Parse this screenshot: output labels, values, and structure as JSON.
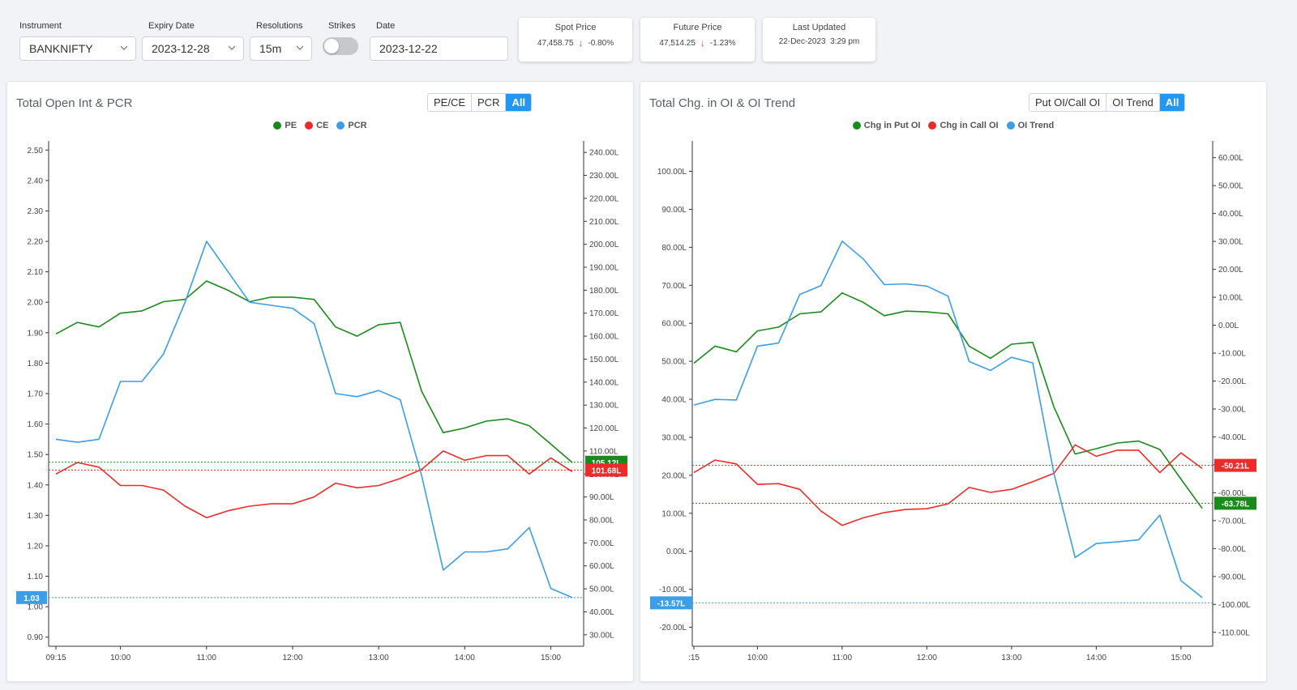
{
  "colors": {
    "accent": "#2196f3",
    "pe": "#1a8a1a",
    "ce": "#ee2b2b",
    "pcr": "#3b9ee6",
    "down": "#e53935"
  },
  "filters": {
    "instrument": {
      "label": "Instrument",
      "value": "BANKNIFTY"
    },
    "expiry": {
      "label": "Expiry Date",
      "value": "2023-12-28"
    },
    "resolution": {
      "label": "Resolutions",
      "value": "15m"
    },
    "strikes": {
      "label": "Strikes"
    },
    "date": {
      "label": "Date",
      "value": "2023-12-22"
    }
  },
  "stats": {
    "spot": {
      "title": "Spot Price",
      "value": "47,458.75",
      "change": "-0.80%",
      "arrow": "down-arrow-icon"
    },
    "future": {
      "title": "Future Price",
      "value": "47,514.25",
      "change": "-1.23%",
      "arrow": "down-arrow-icon"
    },
    "updated": {
      "title": "Last Updated",
      "value": "22-Dec-2023  3:29 pm"
    }
  },
  "left_panel": {
    "title": "Total Open Int & PCR",
    "buttons": [
      "PE/CE",
      "PCR",
      "All"
    ],
    "active_button": "All",
    "legend": [
      "PE",
      "CE",
      "PCR"
    ]
  },
  "right_panel": {
    "title": "Total Chg. in OI & OI Trend",
    "buttons": [
      "Put OI/Call OI",
      "OI Trend",
      "All"
    ],
    "active_button": "All",
    "legend": [
      "Chg in Put OI",
      "Chg in Call OI",
      "OI Trend"
    ]
  },
  "chart_data": [
    {
      "type": "line",
      "title": "Total Open Int & PCR",
      "x": [
        "09:15",
        "09:30",
        "09:45",
        "10:00",
        "10:15",
        "10:30",
        "10:45",
        "11:00",
        "11:15",
        "11:30",
        "11:45",
        "12:00",
        "12:15",
        "12:30",
        "12:45",
        "13:00",
        "13:15",
        "13:30",
        "13:45",
        "14:00",
        "14:15",
        "14:30",
        "14:45",
        "15:00",
        "15:15"
      ],
      "x_ticks": [
        "09:15",
        "10:00",
        "11:00",
        "12:00",
        "13:00",
        "14:00",
        "15:00"
      ],
      "left_axis": {
        "ticks": [
          "2.50",
          "2.40",
          "2.30",
          "2.20",
          "2.10",
          "2.00",
          "1.90",
          "1.80",
          "1.70",
          "1.60",
          "1.50",
          "1.40",
          "1.30",
          "1.20",
          "1.10",
          "1.00",
          "0.90"
        ],
        "range": [
          0.87,
          2.53
        ]
      },
      "right_axis": {
        "ticks": [
          "240.00L",
          "230.00L",
          "220.00L",
          "210.00L",
          "200.00L",
          "190.00L",
          "180.00L",
          "170.00L",
          "160.00L",
          "150.00L",
          "140.00L",
          "130.00L",
          "120.00L",
          "110.00L",
          "100.00L",
          "90.00L",
          "80.00L",
          "70.00L",
          "60.00L",
          "50.00L",
          "40.00L",
          "30.00L"
        ],
        "range": [
          25,
          245
        ]
      },
      "series": [
        {
          "name": "PE",
          "axis": "right",
          "values": [
            161,
            166,
            164,
            170,
            171,
            175,
            176,
            184,
            180,
            175,
            177,
            177,
            176,
            164,
            160,
            165,
            166,
            136,
            118,
            120,
            123,
            124,
            121,
            113,
            105
          ]
        },
        {
          "name": "CE",
          "axis": "right",
          "values": [
            100,
            105,
            103,
            95,
            95,
            93,
            86,
            81,
            84,
            86,
            87,
            87,
            90,
            96,
            94,
            95,
            98,
            102,
            110,
            106,
            108,
            108,
            100,
            107,
            101
          ]
        },
        {
          "name": "PCR",
          "axis": "left",
          "values": [
            1.55,
            1.54,
            1.55,
            1.74,
            1.74,
            1.83,
            2.0,
            2.2,
            2.1,
            2.0,
            1.99,
            1.98,
            1.93,
            1.7,
            1.69,
            1.71,
            1.68,
            1.43,
            1.12,
            1.18,
            1.18,
            1.19,
            1.26,
            1.06,
            1.03
          ]
        }
      ],
      "price_tags": [
        {
          "series": "PE",
          "text": "105.12L",
          "value": 105.12,
          "axis": "right"
        },
        {
          "series": "CE",
          "text": "101.68L",
          "value": 101.68,
          "axis": "right"
        },
        {
          "series": "PCR",
          "text": "1.03",
          "value": 1.03,
          "axis": "left"
        }
      ]
    },
    {
      "type": "line",
      "title": "Total Chg. in OI & OI Trend",
      "x": [
        "09:15",
        "09:30",
        "09:45",
        "10:00",
        "10:15",
        "10:30",
        "10:45",
        "11:00",
        "11:15",
        "11:30",
        "11:45",
        "12:00",
        "12:15",
        "12:30",
        "12:45",
        "13:00",
        "13:15",
        "13:30",
        "13:45",
        "14:00",
        "14:15",
        "14:30",
        "14:45",
        "15:00",
        "15:15"
      ],
      "x_ticks": [
        ":15",
        "10:00",
        "11:00",
        "12:00",
        "13:00",
        "14:00",
        "15:00"
      ],
      "left_axis": {
        "ticks": [
          "100.00L",
          "90.00L",
          "80.00L",
          "70.00L",
          "60.00L",
          "50.00L",
          "40.00L",
          "30.00L",
          "20.00L",
          "10.00L",
          "0.00L",
          "-10.00L",
          "-20.00L"
        ],
        "range": [
          -25,
          108
        ]
      },
      "right_axis": {
        "ticks": [
          "60.00L",
          "50.00L",
          "40.00L",
          "30.00L",
          "20.00L",
          "10.00L",
          "0.00L",
          "-10.00L",
          "-20.00L",
          "-30.00L",
          "-40.00L",
          "-50.00L",
          "-60.00L",
          "-70.00L",
          "-80.00L",
          "-90.00L",
          "-100.00L",
          "-110.00L"
        ],
        "range": [
          -115,
          66
        ]
      },
      "series": [
        {
          "name": "Chg in Put OI",
          "axis": "left",
          "values": [
            49.5,
            54,
            52.5,
            58,
            59,
            62.5,
            63,
            68,
            65.5,
            62,
            63.2,
            63,
            62.5,
            54,
            50.8,
            54.5,
            55,
            38,
            25.6,
            27,
            28.5,
            29,
            26.8,
            19,
            11.3
          ]
        },
        {
          "name": "Chg in Call OI",
          "axis": "left",
          "values": [
            20.7,
            24,
            23,
            17.6,
            17.8,
            16.3,
            10.6,
            6.8,
            8.8,
            10.2,
            11,
            11.2,
            12.5,
            16.8,
            15.5,
            16.3,
            18.3,
            20.5,
            28,
            25,
            26.6,
            26.6,
            20.7,
            25.9,
            21.8
          ]
        },
        {
          "name": "OI Trend",
          "axis": "right",
          "values": [
            -28.6,
            -26.6,
            -26.8,
            -7.5,
            -6.4,
            11,
            14.2,
            30.1,
            23.7,
            14.5,
            14.8,
            14,
            10.4,
            -13,
            -16.2,
            -11.5,
            -13.5,
            -53,
            -83.2,
            -78.2,
            -77.6,
            -76.9,
            -68,
            -91.5,
            -97.5
          ]
        }
      ],
      "price_tags": [
        {
          "series": "Chg in Call OI",
          "text": "-50.21L",
          "value": -50.21,
          "axis": "right"
        },
        {
          "series": "Chg in Put OI",
          "text": "-63.78L",
          "value": -63.78,
          "axis": "right"
        },
        {
          "series": "OI Trend",
          "text": "-13.57L",
          "value": -13.57,
          "axis": "left"
        }
      ]
    }
  ]
}
